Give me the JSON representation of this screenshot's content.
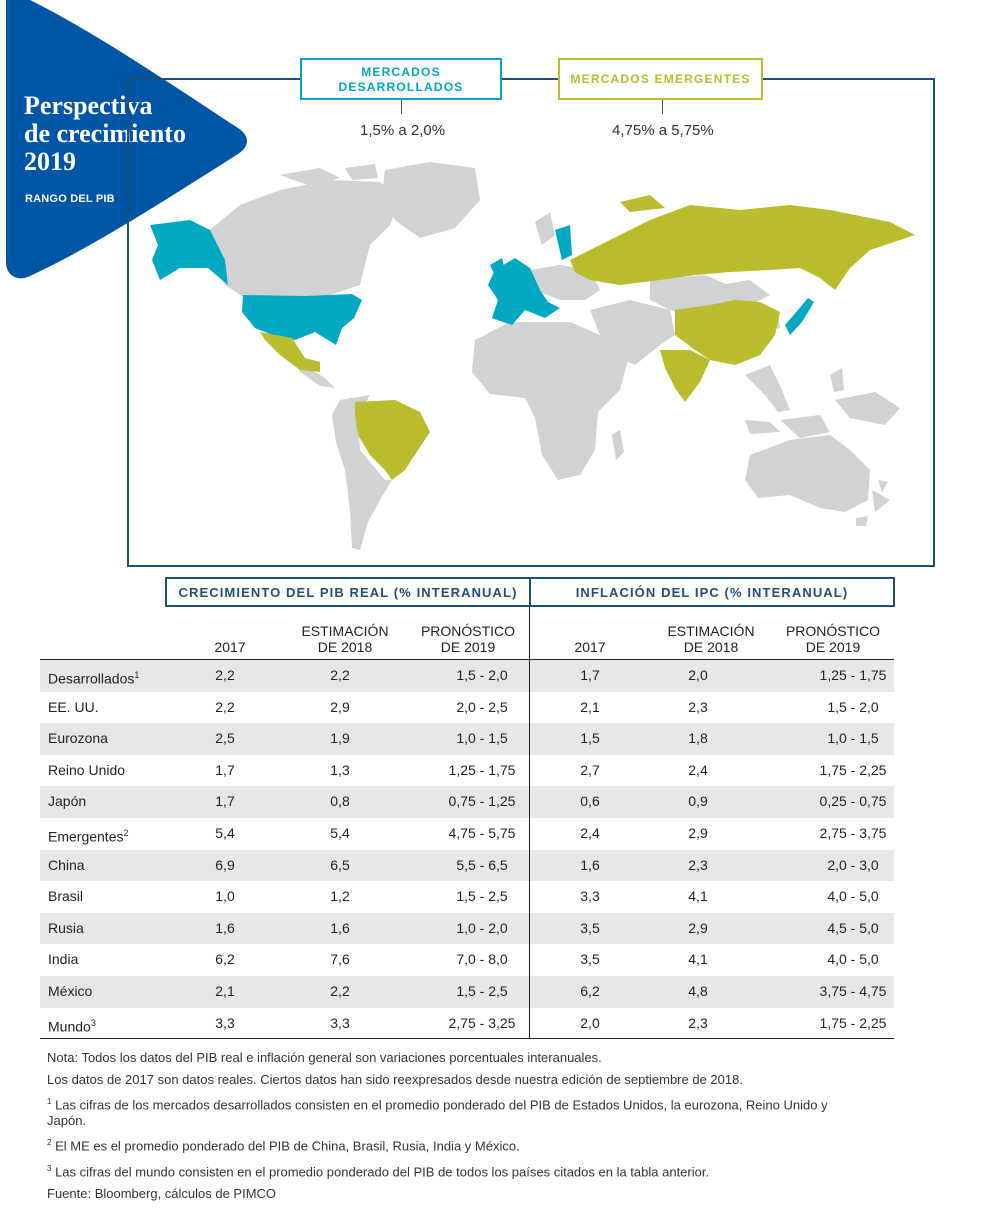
{
  "header": {
    "title_lines": [
      "Perspectiva",
      "de crecimiento",
      "2019"
    ],
    "subtitle": "RANGO DEL PIB",
    "brand_color": "#0056a6"
  },
  "map": {
    "developed": {
      "label_line1": "MERCADOS",
      "label_line2": "DESARROLLADOS",
      "range": "1,5% a 2,0%",
      "color": "#00a9c1"
    },
    "emerging": {
      "label": "MERCADOS EMERGENTES",
      "range": "4,75% a 5,75%",
      "color": "#b9bc2c"
    },
    "other_color": "#d1d2d4"
  },
  "table": {
    "group_headers": [
      "CRECIMIENTO DEL PIB REAL (% INTERANUAL)",
      "INFLACIÓN DEL IPC (% INTERANUAL)"
    ],
    "columns": [
      [
        "2017"
      ],
      [
        "ESTIMACIÓN",
        "DE 2018"
      ],
      [
        "PRONÓSTICO",
        "DE 2019"
      ],
      [
        "2017"
      ],
      [
        "ESTIMACIÓN",
        "DE 2018"
      ],
      [
        "PRONÓSTICO",
        "DE 2019"
      ]
    ],
    "rows": [
      {
        "name": "Desarrollados",
        "sup": "1",
        "values": [
          "2,2",
          "2,2",
          "1,5 - 2,0",
          "1,7",
          "2,0",
          "1,25 - 1,75"
        ]
      },
      {
        "name": "EE. UU.",
        "sup": "",
        "values": [
          "2,2",
          "2,9",
          "2,0 - 2,5",
          "2,1",
          "2,3",
          "1,5 - 2,0"
        ]
      },
      {
        "name": "Eurozona",
        "sup": "",
        "values": [
          "2,5",
          "1,9",
          "1,0 - 1,5",
          "1,5",
          "1,8",
          "1,0 - 1,5"
        ]
      },
      {
        "name": "Reino Unido",
        "sup": "",
        "values": [
          "1,7",
          "1,3",
          "1,25 - 1,75",
          "2,7",
          "2,4",
          "1,75 - 2,25"
        ]
      },
      {
        "name": "Japón",
        "sup": "",
        "values": [
          "1,7",
          "0,8",
          "0,75 - 1,25",
          "0,6",
          "0,9",
          "0,25 - 0,75"
        ]
      },
      {
        "name": "Emergentes",
        "sup": "2",
        "values": [
          "5,4",
          "5,4",
          "4,75 - 5,75",
          "2,4",
          "2,9",
          "2,75 - 3,75"
        ]
      },
      {
        "name": "China",
        "sup": "",
        "values": [
          "6,9",
          "6,5",
          "5,5 - 6,5",
          "1,6",
          "2,3",
          "2,0 - 3,0"
        ]
      },
      {
        "name": "Brasil",
        "sup": "",
        "values": [
          "1,0",
          "1,2",
          "1,5 - 2,5",
          "3,3",
          "4,1",
          "4,0 - 5,0"
        ]
      },
      {
        "name": "Rusia",
        "sup": "",
        "values": [
          "1,6",
          "1,6",
          "1,0 - 2,0",
          "3,5",
          "2,9",
          "4,5 - 5,0"
        ]
      },
      {
        "name": "India",
        "sup": "",
        "values": [
          "6,2",
          "7,6",
          "7,0 - 8,0",
          "3,5",
          "4,1",
          "4,0 - 5,0"
        ]
      },
      {
        "name": "México",
        "sup": "",
        "values": [
          "2,1",
          "2,2",
          "1,5 - 2,5",
          "6,2",
          "4,8",
          "3,75 - 4,75"
        ]
      },
      {
        "name": "Mundo",
        "sup": "3",
        "values": [
          "3,3",
          "3,3",
          "2,75 - 3,25",
          "2,0",
          "2,3",
          "1,75 - 2,25"
        ]
      }
    ]
  },
  "notes": [
    {
      "sup": "",
      "text": "Nota: Todos los datos del PIB real e inflación general son variaciones porcentuales interanuales."
    },
    {
      "sup": "",
      "text": "Los datos de 2017 son datos reales. Ciertos datos han sido reexpresados desde nuestra edición de septiembre de 2018."
    },
    {
      "sup": "1",
      "text": " Las cifras de los mercados desarrollados consisten en el promedio ponderado del PIB de Estados Unidos, la eurozona, Reino Unido y Japón."
    },
    {
      "sup": "2",
      "text": " El ME es el promedio ponderado del PIB de China, Brasil, Rusia, India y México."
    },
    {
      "sup": "3",
      "text": " Las cifras del mundo consisten en el promedio ponderado del PIB de todos los países citados en la tabla anterior."
    },
    {
      "sup": "",
      "text": "Fuente: Bloomberg, cálculos de PIMCO"
    }
  ]
}
